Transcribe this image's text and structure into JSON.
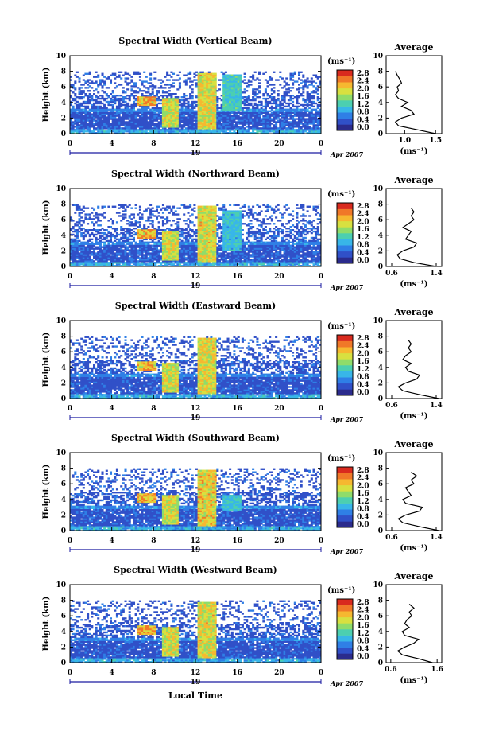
{
  "figure": {
    "xlabel": "Local Time",
    "colorbar_unit": "(ms⁻¹)",
    "colorbar_ticks": [
      "0.0",
      "0.4",
      "0.8",
      "1.2",
      "1.6",
      "2.0",
      "2.4",
      "2.8"
    ],
    "colorbar_colors": [
      "#2b2b8c",
      "#3050c8",
      "#2f7fe6",
      "#38b6e8",
      "#4ccfb0",
      "#8fdc6a",
      "#d8e040",
      "#f6b830",
      "#f07828",
      "#d92a1e"
    ],
    "date_day": "19",
    "date_label": "Apr 2007",
    "height_axis_label": "Height (km)",
    "profile_title": "Average",
    "profile_xlabel": "(ms⁻¹)"
  },
  "chart_data": [
    {
      "type": "heatmap",
      "title": "Spectral Width (Vertical Beam)",
      "ylabel": "Height (km)",
      "xlabel": "Local Time",
      "x_ticks": [
        "0",
        "4",
        "8",
        "12",
        "16",
        "20",
        "0"
      ],
      "y_ticks": [
        "0",
        "2",
        "4",
        "6",
        "8",
        "10"
      ],
      "xlim": [
        0,
        24
      ],
      "ylim": [
        0,
        10
      ],
      "colorbar_range": [
        0.0,
        2.8
      ],
      "hotspots": [
        {
          "t": 7.2,
          "h0": 3.5,
          "h1": 4.8,
          "v": 2.8
        },
        {
          "t": 9.5,
          "h0": 0.8,
          "h1": 4.5,
          "v": 2.4
        },
        {
          "t": 13.1,
          "h0": 0.6,
          "h1": 7.8,
          "v": 2.5
        },
        {
          "t": 15.3,
          "h0": 3.0,
          "h1": 7.5,
          "v": 1.6
        }
      ],
      "profile": {
        "title": "Average",
        "xlabel": "(ms⁻¹)",
        "x_ticks": [
          "1.0",
          "1.5"
        ],
        "xlim": [
          0.7,
          1.6
        ],
        "heights": [
          0,
          0.5,
          1,
          1.5,
          2,
          2.5,
          3,
          3.5,
          4,
          4.5,
          5,
          5.5,
          6,
          6.5,
          7,
          7.5,
          8
        ],
        "values": [
          1.5,
          1.2,
          0.9,
          0.85,
          0.95,
          1.15,
          1.1,
          0.95,
          1.05,
          0.9,
          0.85,
          0.9,
          0.88,
          0.95,
          0.92,
          0.88,
          0.85
        ]
      }
    },
    {
      "type": "heatmap",
      "title": "Spectral Width (Northward Beam)",
      "ylabel": "Height (km)",
      "xlabel": "Local Time",
      "x_ticks": [
        "0",
        "4",
        "8",
        "12",
        "16",
        "20",
        "0"
      ],
      "y_ticks": [
        "0",
        "2",
        "4",
        "6",
        "8",
        "10"
      ],
      "xlim": [
        0,
        24
      ],
      "ylim": [
        0,
        10
      ],
      "colorbar_range": [
        0.0,
        2.8
      ],
      "hotspots": [
        {
          "t": 7.2,
          "h0": 3.5,
          "h1": 4.8,
          "v": 2.8
        },
        {
          "t": 9.5,
          "h0": 0.8,
          "h1": 4.5,
          "v": 2.4
        },
        {
          "t": 13.1,
          "h0": 0.6,
          "h1": 7.8,
          "v": 2.5
        },
        {
          "t": 15.3,
          "h0": 2.0,
          "h1": 7.0,
          "v": 1.4
        }
      ],
      "profile": {
        "title": "Average",
        "xlabel": "(ms⁻¹)",
        "x_ticks": [
          "0.6",
          "1.4"
        ],
        "xlim": [
          0.5,
          1.5
        ],
        "heights": [
          0,
          0.5,
          1,
          1.5,
          2,
          2.5,
          3,
          3.5,
          4,
          4.5,
          5,
          5.5,
          6,
          6.5,
          7,
          7.5
        ],
        "values": [
          1.4,
          1.0,
          0.75,
          0.7,
          0.8,
          1.0,
          1.05,
          0.85,
          0.9,
          0.95,
          0.8,
          0.9,
          1.0,
          0.95,
          1.0,
          0.95
        ]
      }
    },
    {
      "type": "heatmap",
      "title": "Spectral Width (Eastward Beam)",
      "ylabel": "Height (km)",
      "xlabel": "Local Time",
      "x_ticks": [
        "0",
        "4",
        "8",
        "12",
        "16",
        "20",
        "0"
      ],
      "y_ticks": [
        "0",
        "2",
        "4",
        "6",
        "8",
        "10"
      ],
      "xlim": [
        0,
        24
      ],
      "ylim": [
        0,
        10
      ],
      "colorbar_range": [
        0.0,
        2.8
      ],
      "hotspots": [
        {
          "t": 7.2,
          "h0": 3.5,
          "h1": 4.8,
          "v": 2.8
        },
        {
          "t": 9.5,
          "h0": 0.8,
          "h1": 4.5,
          "v": 2.4
        },
        {
          "t": 13.1,
          "h0": 0.6,
          "h1": 7.8,
          "v": 2.5
        }
      ],
      "profile": {
        "title": "Average",
        "xlabel": "(ms⁻¹)",
        "x_ticks": [
          "0.6",
          "1.4"
        ],
        "xlim": [
          0.5,
          1.5
        ],
        "heights": [
          0,
          0.5,
          1,
          1.5,
          2,
          2.5,
          3,
          3.5,
          4,
          4.5,
          5,
          5.5,
          6,
          6.5,
          7,
          7.5
        ],
        "values": [
          1.45,
          1.1,
          0.8,
          0.72,
          0.85,
          1.05,
          1.1,
          0.9,
          0.85,
          0.95,
          0.8,
          0.85,
          0.95,
          0.9,
          0.95,
          0.9
        ]
      }
    },
    {
      "type": "heatmap",
      "title": "Spectral Width (Southward Beam)",
      "ylabel": "Height (km)",
      "xlabel": "Local Time",
      "x_ticks": [
        "0",
        "4",
        "8",
        "12",
        "16",
        "20",
        "0"
      ],
      "y_ticks": [
        "0",
        "2",
        "4",
        "6",
        "8",
        "10"
      ],
      "xlim": [
        0,
        24
      ],
      "ylim": [
        0,
        10
      ],
      "colorbar_range": [
        0.0,
        2.8
      ],
      "hotspots": [
        {
          "t": 7.2,
          "h0": 3.5,
          "h1": 4.8,
          "v": 2.8
        },
        {
          "t": 9.5,
          "h0": 0.8,
          "h1": 4.5,
          "v": 2.4
        },
        {
          "t": 13.1,
          "h0": 0.6,
          "h1": 7.8,
          "v": 2.6
        },
        {
          "t": 15.3,
          "h0": 2.5,
          "h1": 4.5,
          "v": 1.5
        }
      ],
      "profile": {
        "title": "Average",
        "xlabel": "(ms⁻¹)",
        "x_ticks": [
          "0.6",
          "1.4"
        ],
        "xlim": [
          0.5,
          1.5
        ],
        "heights": [
          0,
          0.5,
          1,
          1.5,
          2,
          2.5,
          3,
          3.5,
          4,
          4.5,
          5,
          5.5,
          6,
          6.5,
          7,
          7.5
        ],
        "values": [
          1.45,
          1.1,
          0.8,
          0.72,
          0.85,
          1.1,
          1.15,
          0.85,
          0.8,
          0.95,
          0.9,
          0.85,
          1.0,
          0.95,
          1.05,
          0.95
        ]
      }
    },
    {
      "type": "heatmap",
      "title": "Spectral Width (Westward Beam)",
      "ylabel": "Height (km)",
      "xlabel": "Local Time",
      "x_ticks": [
        "0",
        "4",
        "8",
        "12",
        "16",
        "20",
        "0"
      ],
      "y_ticks": [
        "0",
        "2",
        "4",
        "6",
        "8",
        "10"
      ],
      "xlim": [
        0,
        24
      ],
      "ylim": [
        0,
        10
      ],
      "colorbar_range": [
        0.0,
        2.8
      ],
      "hotspots": [
        {
          "t": 7.2,
          "h0": 3.5,
          "h1": 4.8,
          "v": 2.8
        },
        {
          "t": 9.5,
          "h0": 0.8,
          "h1": 4.5,
          "v": 2.4
        },
        {
          "t": 13.1,
          "h0": 0.6,
          "h1": 7.8,
          "v": 2.5
        }
      ],
      "profile": {
        "title": "Average",
        "xlabel": "(ms⁻¹)",
        "x_ticks": [
          "0.6",
          "1.6"
        ],
        "xlim": [
          0.5,
          1.7
        ],
        "heights": [
          0,
          0.5,
          1,
          1.5,
          2,
          2.5,
          3,
          3.5,
          4,
          4.5,
          5,
          5.5,
          6,
          6.5,
          7,
          7.5
        ],
        "values": [
          1.5,
          1.2,
          0.85,
          0.75,
          0.9,
          1.1,
          1.2,
          0.9,
          0.85,
          1.0,
          0.9,
          0.95,
          1.05,
          1.0,
          1.1,
          1.0
        ]
      }
    }
  ]
}
